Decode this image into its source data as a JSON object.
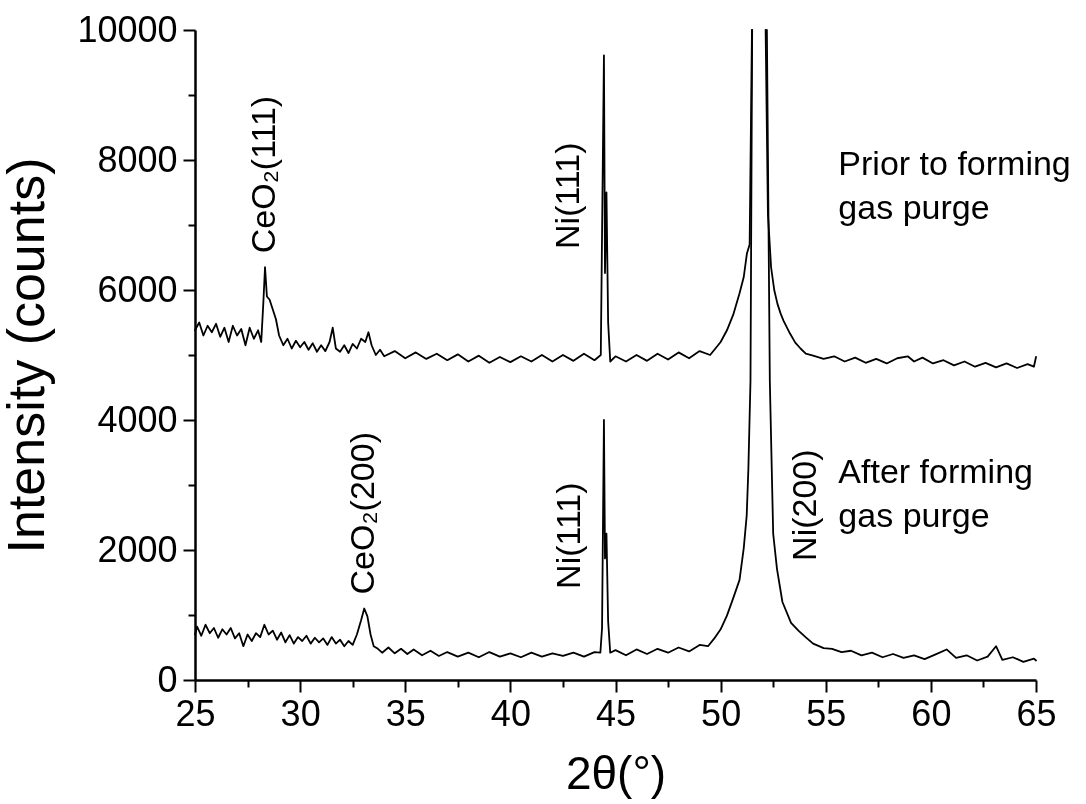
{
  "chart_data": {
    "type": "line",
    "xlabel": "2θ(°)",
    "ylabel": "Intensity (counts)",
    "xlim": [
      25,
      65
    ],
    "xticks": [
      25,
      {
        "value": 27.5,
        "label": null
      },
      30,
      {
        "value": 32.5,
        "label": null
      },
      35,
      {
        "value": 37.5,
        "label": null
      },
      40,
      {
        "value": 42.5,
        "label": null
      },
      45,
      {
        "value": 47.5,
        "label": null
      },
      50,
      {
        "value": 52.5,
        "label": null
      },
      55,
      {
        "value": 57.5,
        "label": null
      },
      60,
      {
        "value": 62.5,
        "label": null
      },
      65
    ],
    "ylim": [
      0,
      10000
    ],
    "yticks": [
      0,
      {
        "value": 1000,
        "label": null
      },
      2000,
      {
        "value": 3000,
        "label": null
      },
      4000,
      {
        "value": 5000,
        "label": null
      },
      6000,
      {
        "value": 7000,
        "label": null
      },
      8000,
      {
        "value": 9000,
        "label": null
      },
      10000
    ],
    "line_style": "solid",
    "annotations": [
      {
        "text": "CeO₂(111)",
        "x": 28.33,
        "y": 6350
      },
      {
        "text": "Ni(111)",
        "x": 44.38,
        "y": 7450
      },
      {
        "text": "CeO₂(200)",
        "x": 33.05,
        "y": 1100
      },
      {
        "text": "Ni(111)",
        "x": 44.4,
        "y": 2220
      },
      {
        "text": "Ni(200)",
        "x": 52.47,
        "y": 2690
      }
    ],
    "series": [
      {
        "name": "Prior to forming gas purge",
        "color": "#000000",
        "x": [
          25,
          25.2,
          25.4,
          25.6,
          25.8,
          26,
          26.2,
          26.4,
          26.6,
          26.8,
          27,
          27.2,
          27.4,
          27.6,
          27.8,
          28,
          28.15,
          28.25,
          28.33,
          28.42,
          28.55,
          28.7,
          28.85,
          29,
          29.2,
          29.4,
          29.6,
          29.8,
          30,
          30.2,
          30.4,
          30.6,
          30.8,
          31,
          31.2,
          31.4,
          31.55,
          31.7,
          31.9,
          32.1,
          32.3,
          32.5,
          32.7,
          32.9,
          33.1,
          33.25,
          33.4,
          33.6,
          33.8,
          34,
          34.5,
          35,
          35.5,
          36,
          36.5,
          37,
          37.5,
          38,
          38.5,
          39,
          39.5,
          40,
          40.5,
          41,
          41.5,
          42,
          42.5,
          43,
          43.5,
          44,
          44.3,
          44.45,
          44.5,
          44.57,
          44.65,
          44.75,
          45,
          45.5,
          46,
          46.5,
          47,
          47.5,
          48,
          48.5,
          49,
          49.5,
          49.8,
          50,
          50.3,
          50.6,
          50.9,
          51.1,
          51.25,
          51.38,
          51.49,
          51.8,
          52.14,
          52.25,
          52.4,
          52.55,
          52.7,
          52.85,
          53,
          53.3,
          53.55,
          53.8,
          54.05,
          54.4,
          54.9,
          55.4,
          55.9,
          56.4,
          56.9,
          57.4,
          57.9,
          58.4,
          58.9,
          59.2,
          59.6,
          60.1,
          60.6,
          61.1,
          61.6,
          62.1,
          62.6,
          63.1,
          63.6,
          64.1,
          64.6,
          64.9,
          65
        ],
        "values": [
          5380,
          5500,
          5300,
          5450,
          5350,
          5480,
          5280,
          5420,
          5200,
          5450,
          5300,
          5400,
          5150,
          5420,
          5250,
          5380,
          5200,
          5800,
          6350,
          5900,
          5850,
          5700,
          5550,
          5300,
          5150,
          5250,
          5100,
          5220,
          5120,
          5200,
          5080,
          5180,
          5050,
          5150,
          5060,
          5200,
          5420,
          5100,
          5050,
          5150,
          5030,
          5170,
          5100,
          5250,
          5200,
          5350,
          5150,
          5000,
          5080,
          4980,
          5060,
          4950,
          5040,
          4940,
          5020,
          4920,
          5010,
          4900,
          4990,
          4880,
          4970,
          4890,
          4980,
          4900,
          5000,
          4900,
          5000,
          4910,
          5020,
          4920,
          5000,
          9610,
          6260,
          7500,
          5500,
          4900,
          4980,
          4900,
          5000,
          4910,
          5020,
          4930,
          5040,
          4950,
          5060,
          5000,
          5120,
          5200,
          5380,
          5620,
          5950,
          6200,
          6560,
          6700,
          10000,
          null,
          10000,
          7170,
          6350,
          6000,
          5790,
          5640,
          5520,
          5330,
          5190,
          5100,
          5020,
          4990,
          4940,
          4980,
          4900,
          4960,
          4880,
          4940,
          4870,
          4950,
          4980,
          4900,
          4960,
          4870,
          4920,
          4840,
          4900,
          4820,
          4880,
          4810,
          4870,
          4800,
          4860,
          4820,
          4970
        ]
      },
      {
        "name": "After forming gas purge",
        "color": "#000000",
        "x": [
          25,
          25.1,
          25.3,
          25.5,
          25.7,
          25.9,
          26.1,
          26.3,
          26.5,
          26.7,
          26.9,
          27.1,
          27.3,
          27.5,
          27.7,
          27.9,
          28.1,
          28.3,
          28.5,
          28.7,
          28.9,
          29.1,
          29.3,
          29.5,
          29.7,
          29.9,
          30.1,
          30.3,
          30.5,
          30.7,
          30.9,
          31.1,
          31.3,
          31.5,
          31.7,
          31.9,
          32.1,
          32.3,
          32.5,
          32.7,
          32.9,
          33.05,
          33.2,
          33.35,
          33.5,
          33.7,
          33.9,
          34.2,
          34.5,
          34.8,
          35.1,
          35.4,
          35.8,
          36.2,
          36.6,
          37,
          37.5,
          38,
          38.5,
          39,
          39.5,
          40,
          40.5,
          41,
          41.5,
          42,
          42.5,
          43,
          43.5,
          44,
          44.28,
          44.36,
          44.45,
          44.5,
          44.57,
          44.65,
          44.75,
          45,
          45.5,
          46,
          46.5,
          47,
          47.5,
          48,
          48.5,
          49,
          49.4,
          49.7,
          50,
          50.3,
          50.6,
          50.9,
          51.1,
          51.24,
          51.32,
          51.42,
          51.5,
          51.85,
          52.2,
          52.34,
          52.5,
          52.68,
          52.94,
          53.35,
          53.7,
          54.04,
          54.4,
          54.9,
          55.3,
          55.75,
          56.2,
          56.7,
          57.2,
          57.7,
          58.2,
          58.7,
          59.2,
          59.7,
          60.2,
          60.75,
          61.2,
          61.7,
          62.2,
          62.7,
          63.1,
          63.4,
          63.9,
          64.4,
          64.9,
          65
        ],
        "values": [
          700,
          820,
          680,
          850,
          720,
          800,
          650,
          780,
          700,
          800,
          640,
          720,
          520,
          700,
          600,
          720,
          660,
          850,
          700,
          760,
          620,
          730,
          580,
          690,
          560,
          660,
          600,
          680,
          560,
          650,
          580,
          640,
          540,
          660,
          560,
          620,
          520,
          600,
          540,
          700,
          920,
          1100,
          980,
          700,
          520,
          480,
          420,
          500,
          410,
          480,
          400,
          470,
          380,
          450,
          370,
          430,
          360,
          420,
          350,
          430,
          360,
          410,
          350,
          420,
          360,
          410,
          370,
          420,
          360,
          430,
          420,
          800,
          4000,
          1870,
          2250,
          900,
          420,
          460,
          380,
          470,
          400,
          480,
          420,
          500,
          440,
          540,
          520,
          640,
          780,
          990,
          1260,
          1540,
          2030,
          2530,
          3250,
          4600,
          10000,
          null,
          10000,
          4600,
          2250,
          1710,
          1200,
          880,
          760,
          660,
          560,
          490,
          480,
          430,
          450,
          380,
          420,
          350,
          400,
          340,
          380,
          320,
          390,
          470,
          340,
          380,
          300,
          360,
          520,
          310,
          350,
          280,
          330,
          300
        ]
      }
    ]
  }
}
